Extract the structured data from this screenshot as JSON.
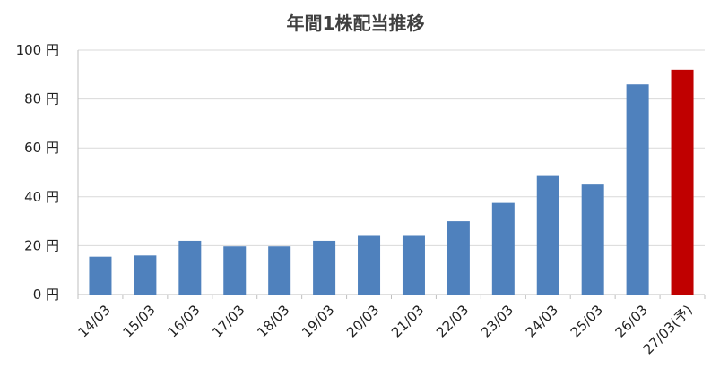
{
  "chart_data": {
    "type": "bar",
    "title": "年間1株配当推移",
    "xlabel": "",
    "ylabel": "",
    "categories": [
      "14/03",
      "15/03",
      "16/03",
      "17/03",
      "18/03",
      "19/03",
      "20/03",
      "21/03",
      "22/03",
      "23/03",
      "24/03",
      "25/03",
      "26/03",
      "27/03(予)"
    ],
    "values": [
      15.5,
      16,
      22,
      19.7,
      19.7,
      22,
      24,
      24,
      30,
      37.5,
      48.5,
      45,
      86,
      92
    ],
    "forecast_index": 13,
    "ylim": [
      0,
      100
    ],
    "yticks": [
      0,
      20,
      40,
      60,
      80,
      100
    ],
    "y_unit": "円",
    "grid": true,
    "legend": "none",
    "colors": {
      "actual": "#4f81bd",
      "forecast": "#c00000",
      "grid": "#d9d9d9",
      "axis": "#bfbfbf"
    }
  }
}
